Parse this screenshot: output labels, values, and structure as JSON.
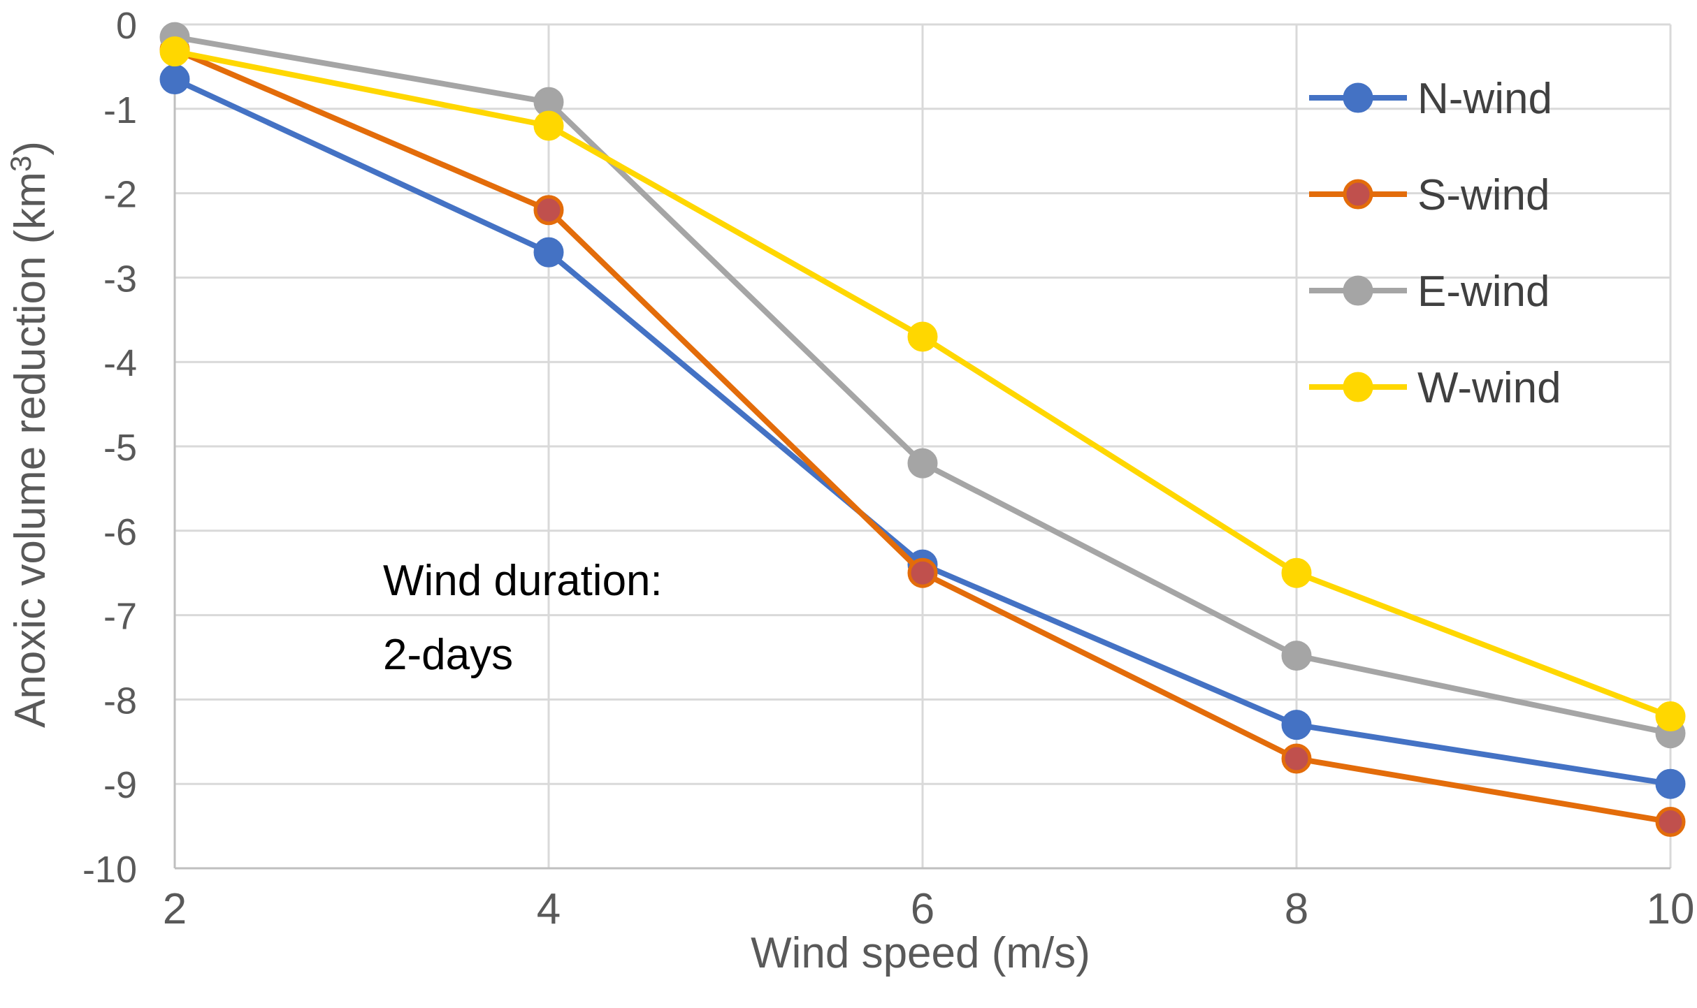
{
  "chart_data": {
    "type": "line",
    "title": "",
    "xlabel": "Wind speed (m/s)",
    "ylabel": {
      "main": "Anoxic volume reduction (km",
      "sup": "3",
      "close": ")"
    },
    "x": [
      2,
      4,
      6,
      8,
      10
    ],
    "x_ticks": [
      "2",
      "4",
      "6",
      "8",
      "10"
    ],
    "y_ticks": [
      "0",
      "-1",
      "-2",
      "-3",
      "-4",
      "-5",
      "-6",
      "-7",
      "-8",
      "-9",
      "-10"
    ],
    "xlim": [
      2,
      10
    ],
    "ylim": [
      -10,
      0
    ],
    "grid": true,
    "legend_position": "top-right",
    "series": [
      {
        "name": "N-wind",
        "color": "#4472C4",
        "marker_fill": "#4472C4",
        "values": [
          -0.65,
          -2.7,
          -6.4,
          -8.3,
          -9.0
        ]
      },
      {
        "name": "S-wind",
        "color": "#E36C0A",
        "marker_fill": "#C0504D",
        "values": [
          -0.3,
          -2.2,
          -6.5,
          -8.7,
          -9.45
        ]
      },
      {
        "name": "E-wind",
        "color": "#A5A5A5",
        "marker_fill": "#A5A5A5",
        "values": [
          -0.15,
          -0.92,
          -5.2,
          -7.48,
          -8.4
        ]
      },
      {
        "name": "W-wind",
        "color": "#FFD700",
        "marker_fill": "#FFD700",
        "values": [
          -0.32,
          -1.2,
          -3.7,
          -6.5,
          -8.2
        ]
      }
    ],
    "annotation": {
      "line1": "Wind duration:",
      "line2": "2-days"
    }
  }
}
